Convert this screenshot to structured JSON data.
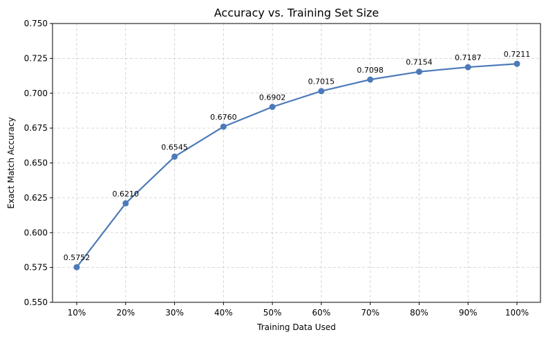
{
  "chart_data": {
    "type": "line",
    "title": "Accuracy vs. Training Set Size",
    "xlabel": "Training Data Used",
    "ylabel": "Exact Match Accuracy",
    "categories": [
      "10%",
      "20%",
      "30%",
      "40%",
      "50%",
      "60%",
      "70%",
      "80%",
      "90%",
      "100%"
    ],
    "values": [
      0.5752,
      0.621,
      0.6545,
      0.676,
      0.6902,
      0.7015,
      0.7098,
      0.7154,
      0.7187,
      0.7211
    ],
    "data_labels": [
      "0.5752",
      "0.6210",
      "0.6545",
      "0.6760",
      "0.6902",
      "0.7015",
      "0.7098",
      "0.7154",
      "0.7187",
      "0.7211"
    ],
    "ylim": [
      0.55,
      0.75
    ],
    "yticks": [
      "0.550",
      "0.575",
      "0.600",
      "0.625",
      "0.650",
      "0.675",
      "0.700",
      "0.725",
      "0.750"
    ],
    "grid": true,
    "line_color": "#4c7ab8",
    "grid_color": "#cccccc"
  }
}
